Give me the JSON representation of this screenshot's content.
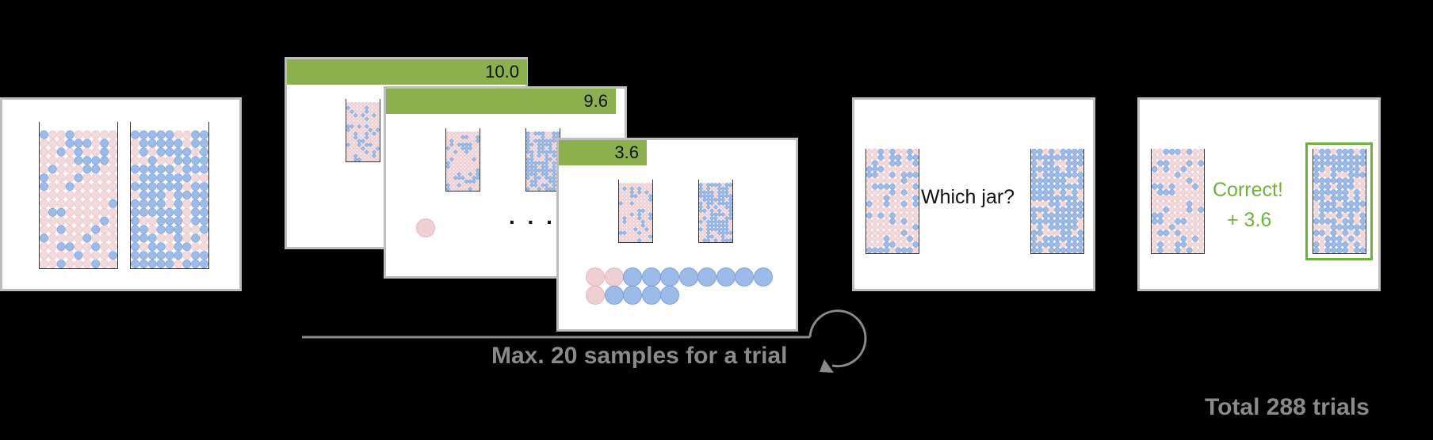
{
  "timers": {
    "first": "10.0",
    "second": "9.6",
    "third": "3.6"
  },
  "ellipsis": ". . .",
  "question": "Which jar?",
  "feedback": {
    "correct": "Correct!",
    "reward": "+ 3.6"
  },
  "loop_caption": "Max. 20 samples for a trial",
  "total_caption": "Total 288 trials",
  "colors": {
    "majority_pink": "#f2d9dc",
    "pink_dot": "#efcfd3",
    "blue": "#9dbbe9",
    "timer_green": "#8cb04e",
    "correct_green": "#6fb13a"
  }
}
